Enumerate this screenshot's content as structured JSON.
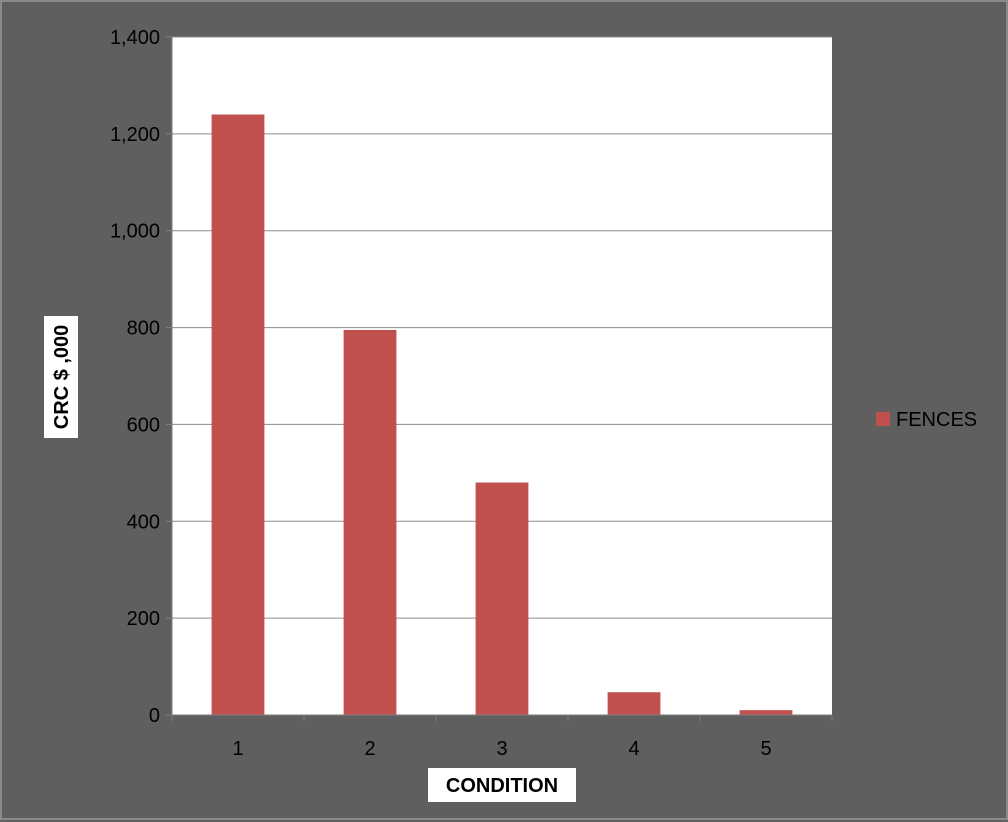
{
  "chart_data": {
    "type": "bar",
    "title": "",
    "xlabel": "CONDITION",
    "ylabel": "CRC $ ,000",
    "categories": [
      "1",
      "2",
      "3",
      "4",
      "5"
    ],
    "series": [
      {
        "name": "FENCES",
        "values": [
          1240,
          795,
          480,
          47,
          10
        ],
        "color": "#c0504d"
      }
    ],
    "ylim": [
      0,
      1400
    ],
    "yticks": [
      0,
      200,
      400,
      600,
      800,
      1000,
      1200,
      1400
    ],
    "ytick_labels": [
      "0",
      "200",
      "400",
      "600",
      "800",
      "1,000",
      "1,200",
      "1,400"
    ],
    "grid": true,
    "legend_position": "right",
    "colors": {
      "frame_bg": "#5f5f5f",
      "plot_bg": "#ffffff",
      "gridline": "#8c8c8c",
      "bar": "#c0504d"
    }
  }
}
